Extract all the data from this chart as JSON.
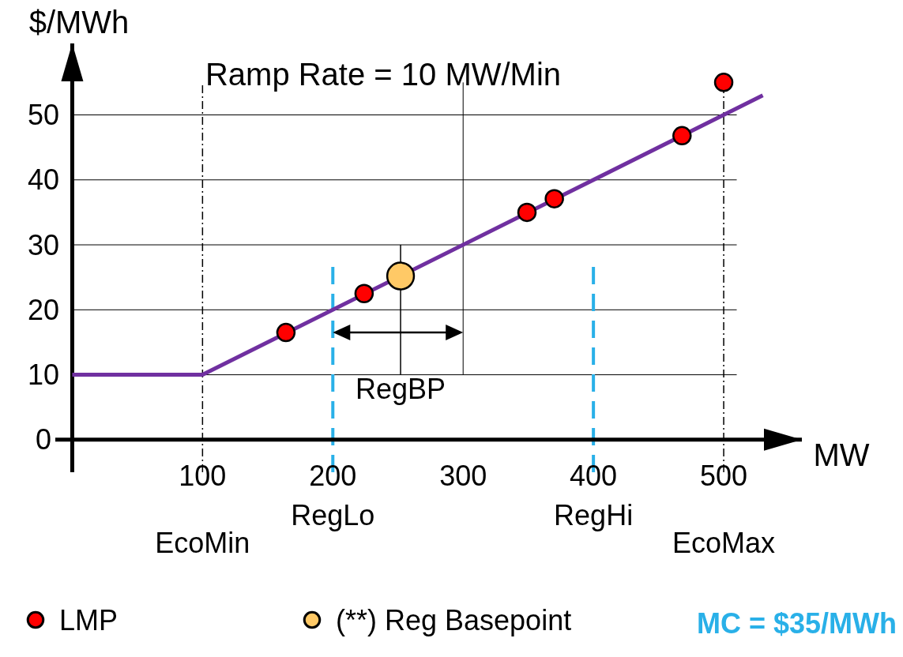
{
  "chart_data": {
    "type": "line",
    "title": "Ramp Rate = 10 MW/Min",
    "xlabel": "MW",
    "ylabel": "$/MWh",
    "xlim": [
      -13,
      560
    ],
    "ylim": [
      -5,
      61
    ],
    "xticks": [
      100,
      200,
      300,
      400,
      500
    ],
    "yticks": [
      0,
      10,
      20,
      30,
      40,
      50
    ],
    "grid": true,
    "series": [
      {
        "color": "#7030a0",
        "x": [
          0,
          100,
          530
        ],
        "values": [
          10,
          10,
          53
        ],
        "marker": "none"
      },
      {
        "type": "scatter",
        "name": "LMP",
        "color": "#ff0000",
        "x": [
          164,
          224,
          349,
          370,
          468,
          500
        ],
        "values": [
          16.5,
          22.5,
          35,
          37.1,
          46.8,
          55
        ],
        "marker": "circle"
      },
      {
        "type": "scatter",
        "name": "(**) Reg Basepoint",
        "color": "#ffc966",
        "x": [
          252
        ],
        "values": [
          25.2
        ],
        "marker": "circle"
      }
    ],
    "ref_lines": [
      {
        "axis": "x",
        "value": 100,
        "label": "EcoMin",
        "color": "#000000",
        "line_style": "dotted"
      },
      {
        "axis": "x",
        "value": 200,
        "label": "RegLo",
        "color": "#29b0e8",
        "line_style": "dashed"
      },
      {
        "axis": "x",
        "value": 400,
        "label": "RegHi",
        "color": "#29b0e8",
        "line_style": "dashed"
      },
      {
        "axis": "x",
        "value": 500,
        "label": "EcoMax",
        "color": "#000000",
        "line_style": "dotted"
      },
      {
        "axis": "x",
        "value": 252,
        "label": "RegBP",
        "color": "#000000",
        "line_style": "solid"
      }
    ],
    "annotations": [
      "MC = $35/MWh"
    ],
    "legend": "bottom"
  }
}
